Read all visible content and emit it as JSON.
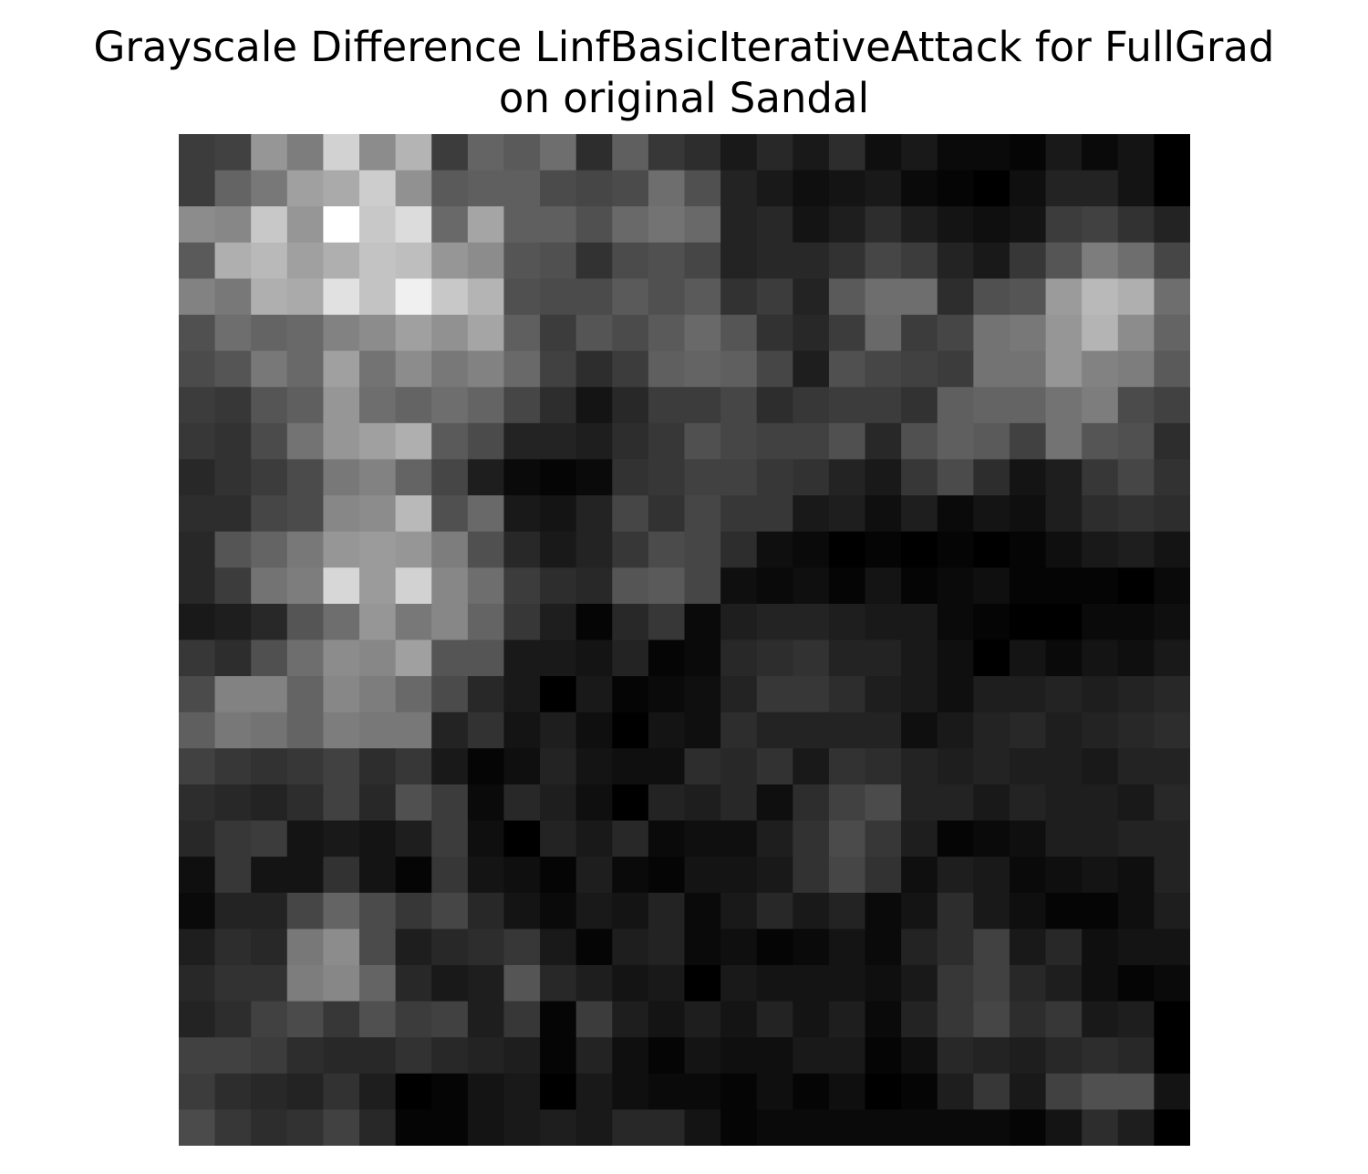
{
  "figure": {
    "title_line1": "Grayscale Difference LinfBasicIterativeAttack for FullGrad",
    "title_line2": "on original Sandal"
  },
  "chart_data": {
    "type": "heatmap",
    "title": "Grayscale Difference LinfBasicIterativeAttack for FullGrad on original Sandal",
    "colormap": "gray",
    "axes_visible": false,
    "rows": 28,
    "cols": 28,
    "value_range": [
      0,
      255
    ],
    "values": [
      [
        60,
        65,
        150,
        125,
        210,
        140,
        180,
        60,
        100,
        90,
        110,
        45,
        95,
        55,
        45,
        25,
        40,
        25,
        45,
        15,
        25,
        10,
        10,
        5,
        25,
        10,
        20,
        0
      ],
      [
        60,
        100,
        120,
        160,
        170,
        205,
        145,
        90,
        95,
        95,
        75,
        70,
        75,
        110,
        80,
        35,
        25,
        15,
        20,
        25,
        10,
        5,
        0,
        15,
        35,
        35,
        20,
        0
      ],
      [
        140,
        135,
        200,
        150,
        255,
        200,
        220,
        105,
        165,
        95,
        95,
        80,
        105,
        115,
        105,
        35,
        40,
        20,
        30,
        45,
        30,
        20,
        15,
        20,
        60,
        65,
        50,
        35
      ],
      [
        90,
        175,
        185,
        160,
        175,
        195,
        190,
        150,
        140,
        85,
        80,
        50,
        75,
        80,
        70,
        35,
        40,
        40,
        50,
        70,
        60,
        35,
        25,
        55,
        85,
        125,
        110,
        70
      ],
      [
        130,
        120,
        175,
        170,
        225,
        195,
        240,
        200,
        180,
        80,
        75,
        75,
        90,
        80,
        90,
        50,
        60,
        35,
        90,
        110,
        110,
        45,
        80,
        85,
        155,
        185,
        175,
        110
      ],
      [
        80,
        110,
        100,
        105,
        130,
        140,
        160,
        145,
        165,
        95,
        60,
        85,
        75,
        90,
        105,
        85,
        50,
        40,
        60,
        105,
        60,
        70,
        115,
        120,
        150,
        180,
        140,
        100
      ],
      [
        75,
        85,
        120,
        105,
        160,
        115,
        140,
        120,
        130,
        105,
        65,
        45,
        60,
        95,
        100,
        95,
        70,
        30,
        80,
        70,
        65,
        60,
        115,
        115,
        150,
        130,
        125,
        90
      ],
      [
        60,
        55,
        85,
        95,
        150,
        110,
        100,
        110,
        100,
        70,
        45,
        20,
        40,
        60,
        60,
        70,
        45,
        55,
        60,
        60,
        50,
        95,
        100,
        100,
        115,
        125,
        75,
        65
      ],
      [
        55,
        50,
        75,
        115,
        150,
        160,
        175,
        90,
        75,
        35,
        35,
        30,
        45,
        55,
        80,
        70,
        65,
        65,
        80,
        40,
        80,
        95,
        90,
        65,
        115,
        85,
        80,
        45
      ],
      [
        40,
        50,
        60,
        75,
        120,
        130,
        100,
        70,
        30,
        10,
        5,
        10,
        50,
        55,
        65,
        65,
        55,
        50,
        35,
        25,
        55,
        75,
        45,
        20,
        30,
        55,
        70,
        50
      ],
      [
        45,
        45,
        70,
        75,
        135,
        140,
        185,
        80,
        105,
        25,
        20,
        35,
        70,
        50,
        70,
        55,
        55,
        25,
        30,
        15,
        30,
        10,
        20,
        15,
        30,
        45,
        50,
        45
      ],
      [
        40,
        85,
        100,
        120,
        150,
        155,
        150,
        125,
        80,
        40,
        25,
        35,
        55,
        75,
        70,
        45,
        15,
        10,
        0,
        5,
        0,
        5,
        0,
        5,
        15,
        25,
        30,
        20
      ],
      [
        40,
        60,
        115,
        125,
        215,
        155,
        210,
        135,
        110,
        60,
        45,
        40,
        85,
        90,
        70,
        15,
        10,
        15,
        5,
        20,
        5,
        10,
        15,
        5,
        5,
        5,
        0,
        10
      ],
      [
        25,
        30,
        40,
        85,
        110,
        150,
        120,
        135,
        100,
        55,
        30,
        5,
        40,
        55,
        10,
        30,
        35,
        35,
        30,
        25,
        25,
        10,
        5,
        0,
        0,
        10,
        10,
        15
      ],
      [
        55,
        45,
        80,
        110,
        140,
        135,
        160,
        85,
        85,
        25,
        25,
        20,
        35,
        5,
        10,
        40,
        45,
        50,
        35,
        35,
        25,
        15,
        0,
        20,
        10,
        20,
        15,
        25
      ],
      [
        75,
        130,
        130,
        100,
        135,
        125,
        105,
        75,
        40,
        25,
        0,
        25,
        5,
        10,
        15,
        35,
        55,
        55,
        45,
        30,
        25,
        15,
        30,
        30,
        35,
        30,
        35,
        40
      ],
      [
        95,
        120,
        115,
        100,
        125,
        120,
        120,
        35,
        50,
        20,
        30,
        15,
        0,
        20,
        15,
        45,
        35,
        35,
        35,
        35,
        15,
        25,
        35,
        40,
        30,
        35,
        40,
        45
      ],
      [
        65,
        55,
        50,
        55,
        65,
        45,
        55,
        25,
        5,
        15,
        35,
        20,
        15,
        15,
        45,
        40,
        50,
        25,
        50,
        45,
        35,
        30,
        35,
        30,
        30,
        25,
        35,
        35
      ],
      [
        45,
        40,
        35,
        45,
        65,
        40,
        80,
        60,
        10,
        40,
        30,
        15,
        0,
        35,
        30,
        40,
        15,
        45,
        65,
        75,
        35,
        35,
        25,
        35,
        30,
        30,
        25,
        40
      ],
      [
        40,
        55,
        60,
        20,
        25,
        20,
        30,
        60,
        15,
        0,
        35,
        25,
        40,
        10,
        15,
        15,
        30,
        50,
        75,
        55,
        30,
        5,
        10,
        15,
        30,
        30,
        35,
        35
      ],
      [
        15,
        55,
        20,
        20,
        50,
        20,
        5,
        55,
        20,
        15,
        5,
        30,
        10,
        5,
        20,
        20,
        25,
        50,
        70,
        50,
        15,
        30,
        25,
        10,
        15,
        20,
        15,
        35
      ],
      [
        10,
        35,
        35,
        70,
        100,
        75,
        55,
        70,
        40,
        20,
        10,
        25,
        20,
        35,
        10,
        25,
        40,
        25,
        35,
        10,
        20,
        45,
        25,
        15,
        5,
        5,
        15,
        30
      ],
      [
        30,
        45,
        40,
        120,
        140,
        75,
        30,
        40,
        45,
        55,
        25,
        5,
        30,
        35,
        10,
        15,
        5,
        10,
        20,
        10,
        35,
        45,
        65,
        25,
        40,
        15,
        20,
        20
      ],
      [
        40,
        50,
        50,
        125,
        135,
        100,
        40,
        25,
        30,
        85,
        40,
        30,
        20,
        25,
        0,
        25,
        20,
        20,
        20,
        15,
        25,
        55,
        65,
        40,
        30,
        15,
        5,
        10
      ],
      [
        35,
        45,
        65,
        75,
        55,
        80,
        60,
        65,
        30,
        55,
        5,
        60,
        30,
        20,
        30,
        20,
        35,
        20,
        30,
        10,
        35,
        55,
        70,
        45,
        55,
        25,
        30,
        0
      ],
      [
        65,
        65,
        60,
        45,
        40,
        40,
        50,
        40,
        35,
        30,
        5,
        35,
        15,
        5,
        20,
        15,
        15,
        25,
        25,
        5,
        15,
        40,
        35,
        30,
        40,
        45,
        40,
        0
      ],
      [
        60,
        45,
        40,
        35,
        50,
        30,
        0,
        5,
        20,
        25,
        0,
        25,
        15,
        10,
        10,
        5,
        15,
        5,
        15,
        0,
        5,
        30,
        55,
        25,
        65,
        80,
        80,
        20
      ],
      [
        75,
        55,
        45,
        50,
        65,
        40,
        5,
        5,
        20,
        25,
        30,
        25,
        40,
        40,
        20,
        5,
        10,
        10,
        10,
        10,
        10,
        10,
        10,
        5,
        20,
        45,
        30,
        0
      ]
    ]
  }
}
